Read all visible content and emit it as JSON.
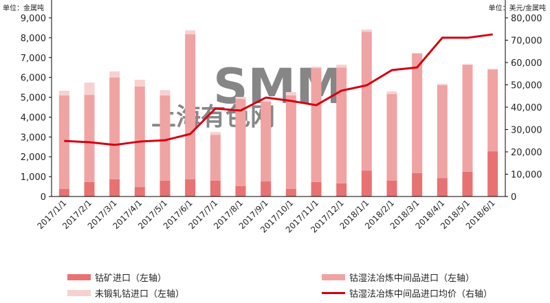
{
  "chart_data": {
    "type": "bar",
    "stacked": true,
    "left_unit": "单位：金属吨",
    "right_unit": "单位：美元/金属吨",
    "categories": [
      "2017/1/1",
      "2017/2/1",
      "2017/3/1",
      "2017/4/1",
      "2017/5/1",
      "2017/6/1",
      "2017/7/1",
      "2017/8/1",
      "2017/9/1",
      "2017/10/1",
      "2017/11/1",
      "2017/12/1",
      "2018/1/1",
      "2018/2/1",
      "2018/3/1",
      "2018/4/1",
      "2018/5/1",
      "2018/6/1"
    ],
    "y_left": {
      "min": 0,
      "max": 9000,
      "ticks": [
        "0",
        "1,000",
        "2,000",
        "3,000",
        "4,000",
        "5,000",
        "6,000",
        "7,000",
        "8,000",
        "9,000"
      ]
    },
    "y_right": {
      "min": 0,
      "max": 80000,
      "ticks": [
        "0",
        "10,000",
        "20,000",
        "30,000",
        "40,000",
        "50,000",
        "60,000",
        "70,000",
        "80,000"
      ]
    },
    "series": [
      {
        "name": "钴矿进口（左轴）",
        "type": "bar",
        "axis": "left",
        "color": "#e87272",
        "values": [
          380,
          730,
          870,
          480,
          800,
          870,
          800,
          520,
          760,
          380,
          730,
          660,
          1310,
          800,
          1180,
          930,
          1250,
          2280
        ]
      },
      {
        "name": "钴湿法冶炼中间品进口（左轴）",
        "type": "bar",
        "axis": "left",
        "color": "#f0a3a3",
        "values": [
          4710,
          4390,
          5130,
          5060,
          4290,
          7300,
          2310,
          4390,
          4020,
          4710,
          5740,
          5840,
          6990,
          4360,
          6020,
          4680,
          5390,
          4120
        ]
      },
      {
        "name": "未锻轧钴进口（左轴）",
        "type": "bar",
        "axis": "left",
        "color": "#f8d0d0",
        "values": [
          240,
          620,
          300,
          340,
          270,
          200,
          140,
          110,
          60,
          170,
          70,
          140,
          110,
          130,
          30,
          60,
          20,
          30
        ]
      },
      {
        "name": "钴湿法冶炼中间品进口均价（右轴）",
        "type": "line",
        "axis": "right",
        "color": "#d40010",
        "values": [
          24900,
          24300,
          23100,
          24600,
          25200,
          28000,
          39400,
          38500,
          44300,
          42800,
          40900,
          47400,
          49800,
          56600,
          57800,
          71100,
          71100,
          72600
        ]
      }
    ],
    "watermark": "SMM 上海有色网",
    "legend_position": "bottom",
    "grid": false
  }
}
